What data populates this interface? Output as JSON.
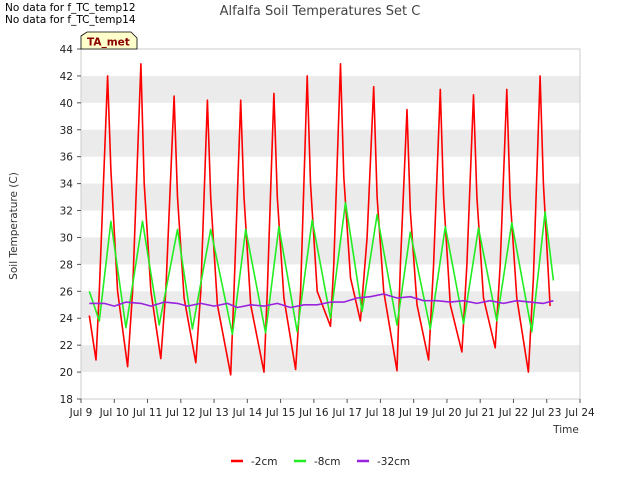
{
  "notes": [
    "No data for f_TC_temp12",
    "No data for f_TC_temp14"
  ],
  "badge": "TA_met",
  "colors": {
    "s1": "#ff0000",
    "s2": "#22ee22",
    "s3": "#9922dd",
    "band": "#ebebeb",
    "badge_bg": "#ffffcc"
  },
  "chart_data": {
    "type": "line",
    "title": "Alfalfa Soil Temperatures Set C",
    "xlabel": "Time",
    "ylabel": "Soil Temperature (C)",
    "xlim": [
      9,
      24
    ],
    "ylim": [
      18,
      44
    ],
    "x_ticks": [
      9,
      10,
      11,
      12,
      13,
      14,
      15,
      16,
      17,
      18,
      19,
      20,
      21,
      22,
      23,
      24
    ],
    "x_tick_labels": [
      "Jul 9",
      "Jul 10",
      "Jul 11",
      "Jul 12",
      "Jul 13",
      "Jul 14",
      "Jul 15",
      "Jul 16",
      "Jul 17",
      "Jul 18",
      "Jul 19",
      "Jul 20",
      "Jul 21",
      "Jul 22",
      "Jul 23",
      "Jul 24"
    ],
    "y_ticks": [
      18,
      20,
      22,
      24,
      26,
      28,
      30,
      32,
      34,
      36,
      38,
      40,
      42,
      44
    ],
    "grid": "horizontal bands",
    "legend_position": "bottom-center",
    "series": [
      {
        "name": "-2cm",
        "color": "#ff0000",
        "x": [
          9.25,
          9.45,
          9.55,
          9.8,
          9.9,
          10.1,
          10.4,
          10.55,
          10.8,
          10.9,
          11.1,
          11.4,
          11.55,
          11.8,
          11.9,
          12.1,
          12.45,
          12.6,
          12.8,
          12.9,
          13.1,
          13.5,
          13.6,
          13.8,
          13.9,
          14.1,
          14.5,
          14.6,
          14.8,
          14.9,
          15.1,
          15.45,
          15.6,
          15.8,
          15.9,
          16.1,
          16.5,
          16.6,
          16.8,
          16.9,
          17.1,
          17.4,
          17.6,
          17.8,
          17.9,
          18.1,
          18.5,
          18.6,
          18.8,
          18.9,
          19.1,
          19.45,
          19.6,
          19.8,
          19.9,
          20.1,
          20.45,
          20.6,
          20.8,
          20.9,
          21.1,
          21.45,
          21.6,
          21.8,
          21.9,
          22.1,
          22.45,
          22.6,
          22.8,
          22.9,
          23.1
        ],
        "y": [
          24.2,
          20.9,
          26.0,
          42.0,
          35.0,
          26.0,
          20.4,
          26.0,
          42.9,
          34.0,
          26.0,
          21.0,
          26.0,
          40.5,
          33.0,
          25.5,
          20.7,
          26.0,
          40.2,
          33.0,
          25.0,
          19.8,
          26.0,
          40.2,
          33.0,
          25.0,
          20.0,
          26.0,
          40.7,
          33.0,
          25.5,
          20.2,
          26.0,
          42.0,
          34.0,
          26.0,
          23.4,
          28.0,
          42.9,
          34.5,
          27.0,
          23.8,
          30.0,
          41.2,
          33.0,
          26.0,
          20.1,
          28.0,
          39.5,
          32.0,
          25.0,
          20.9,
          28.0,
          41.0,
          33.0,
          25.0,
          21.5,
          28.0,
          40.6,
          33.0,
          25.5,
          21.8,
          28.0,
          41.0,
          33.0,
          25.5,
          20.0,
          27.0,
          42.0,
          34.0,
          24.9
        ]
      },
      {
        "name": "-8cm",
        "color": "#22ee22",
        "x": [
          9.25,
          9.55,
          9.9,
          10.35,
          10.85,
          11.35,
          11.9,
          12.35,
          12.9,
          13.55,
          13.95,
          14.55,
          14.95,
          15.5,
          15.95,
          16.5,
          16.95,
          17.45,
          17.9,
          18.5,
          18.9,
          19.5,
          19.95,
          20.5,
          20.95,
          21.5,
          21.95,
          22.55,
          22.95,
          23.2
        ],
        "y": [
          26.0,
          23.8,
          31.2,
          23.3,
          31.2,
          23.5,
          30.6,
          23.2,
          30.6,
          22.8,
          30.6,
          22.9,
          30.8,
          23.0,
          31.3,
          24.0,
          32.6,
          24.5,
          31.7,
          23.5,
          30.4,
          23.2,
          30.8,
          23.6,
          30.7,
          23.8,
          31.1,
          23.0,
          31.9,
          26.8
        ]
      },
      {
        "name": "-32cm",
        "color": "#9922dd",
        "x": [
          9.25,
          9.7,
          10.0,
          10.35,
          10.8,
          11.1,
          11.5,
          11.9,
          12.2,
          12.6,
          13.0,
          13.4,
          13.7,
          14.1,
          14.5,
          14.9,
          15.3,
          15.7,
          16.1,
          16.5,
          16.9,
          17.3,
          17.7,
          18.1,
          18.5,
          18.9,
          19.3,
          19.7,
          20.1,
          20.5,
          20.9,
          21.3,
          21.7,
          22.1,
          22.5,
          22.9,
          23.2
        ],
        "y": [
          25.1,
          25.1,
          24.9,
          25.2,
          25.1,
          24.9,
          25.2,
          25.1,
          24.9,
          25.1,
          24.9,
          25.1,
          24.8,
          25.0,
          24.9,
          25.1,
          24.8,
          25.0,
          25.0,
          25.2,
          25.2,
          25.5,
          25.6,
          25.8,
          25.5,
          25.6,
          25.3,
          25.3,
          25.2,
          25.3,
          25.1,
          25.3,
          25.1,
          25.3,
          25.2,
          25.1,
          25.3
        ]
      }
    ]
  }
}
